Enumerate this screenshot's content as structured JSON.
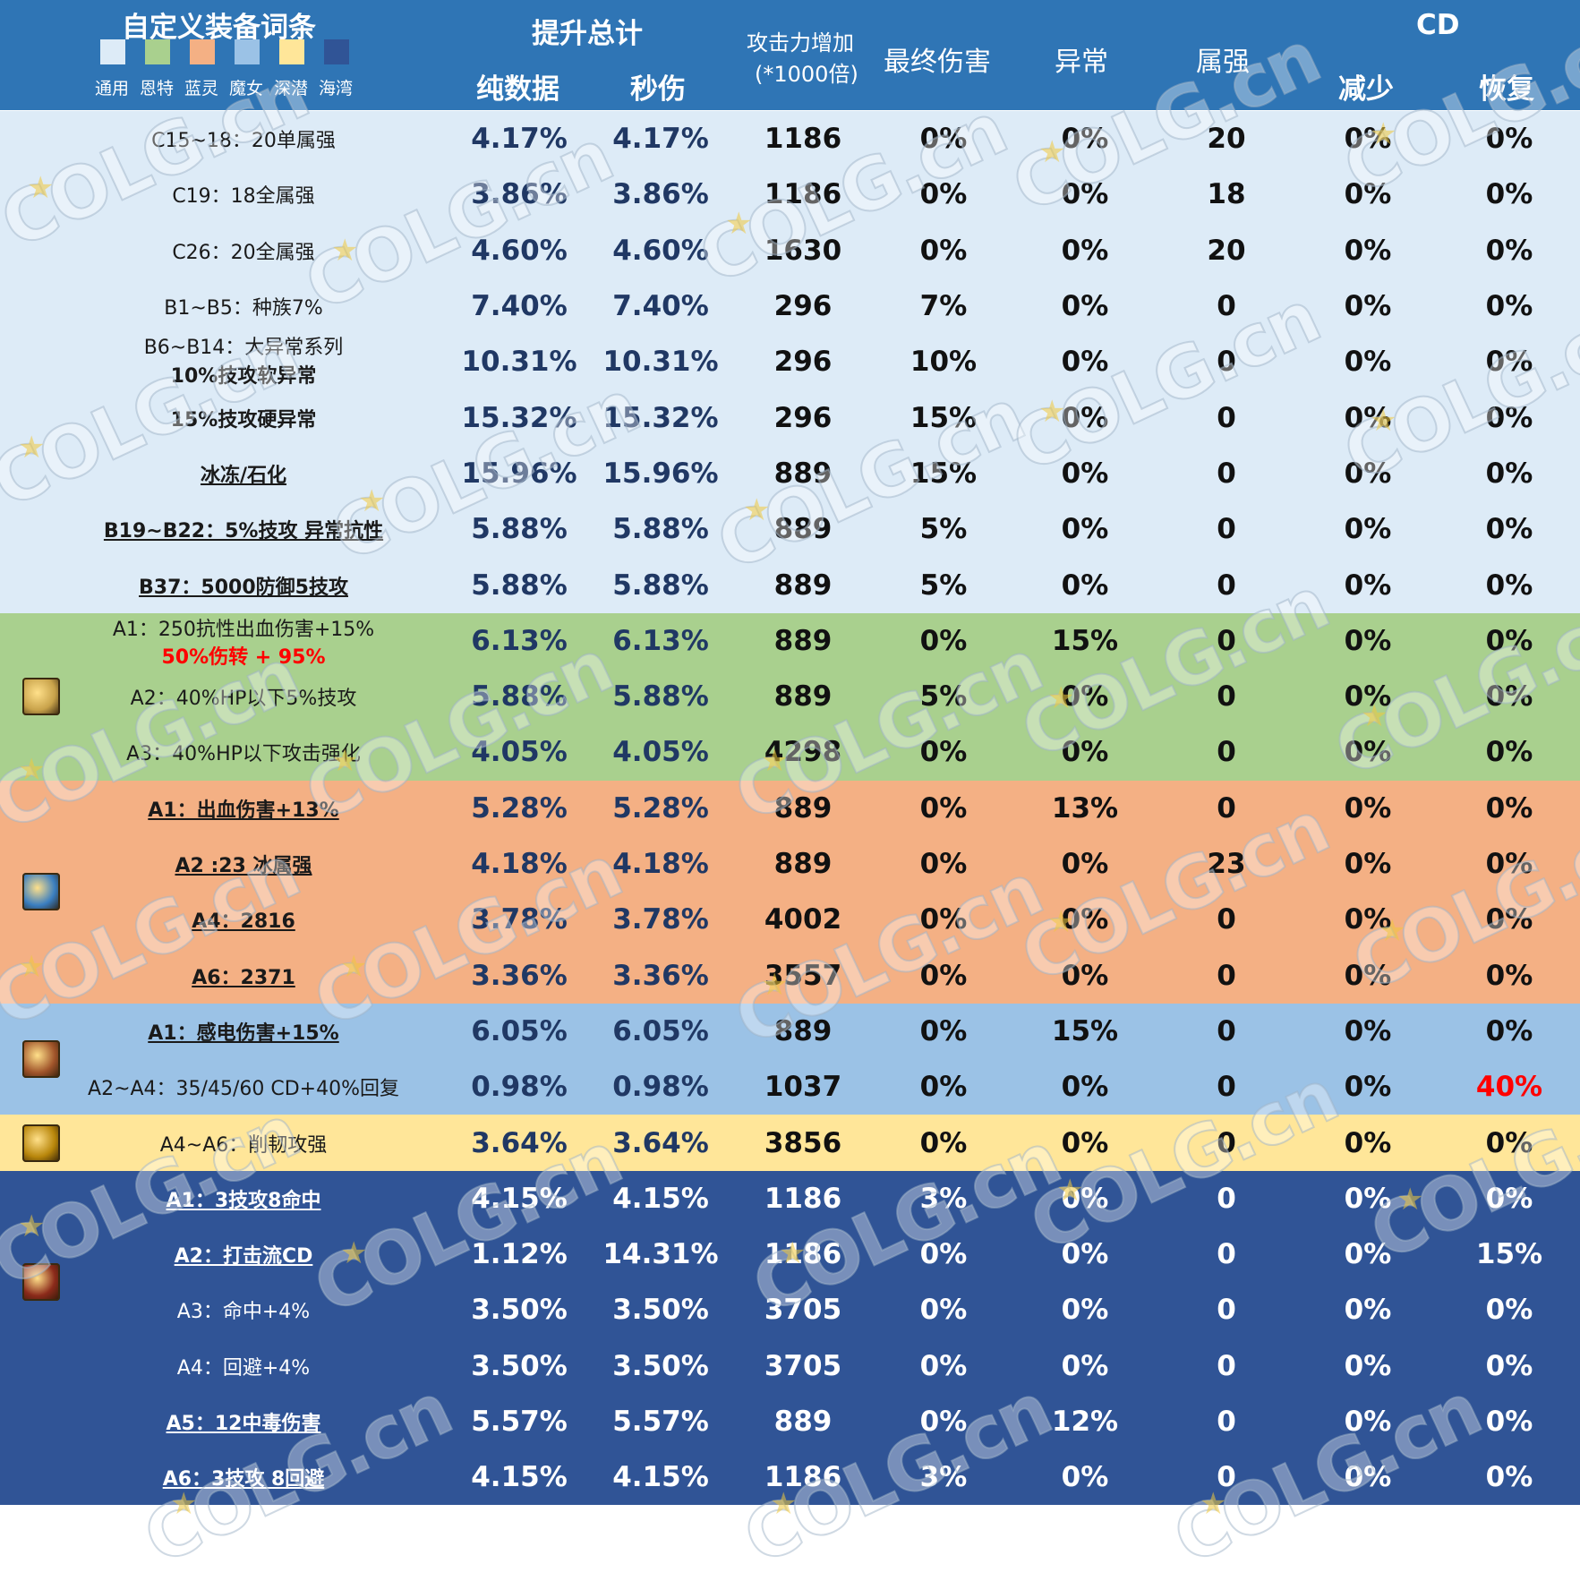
{
  "header": {
    "title": "自定义装备词条",
    "swatches": [
      {
        "label": "通用",
        "color": "#ddebf7"
      },
      {
        "label": "恩特",
        "color": "#a9d08e"
      },
      {
        "label": "蓝灵",
        "color": "#f4b084"
      },
      {
        "label": "魔女",
        "color": "#9bc2e6"
      },
      {
        "label": "深潜",
        "color": "#ffe699"
      },
      {
        "label": "海湾",
        "color": "#305496"
      }
    ],
    "total_label": "提升总计",
    "col_pure": "纯数据",
    "col_sec": "秒伤",
    "col_atk_line1": "攻击力增加",
    "col_atk_line2": "(*1000倍)",
    "col_final": "最终伤害",
    "col_abn": "异常",
    "col_elem": "属强",
    "cd_label": "CD",
    "col_cd_reduce": "减少",
    "col_cd_recover": "恢复"
  },
  "colors": {
    "header_bg": "#2f75b5",
    "general": "#ddebf7",
    "ent": "#a9d08e",
    "blue": "#f4b084",
    "witch": "#9bc2e6",
    "deep": "#ffe699",
    "bay": "#305496",
    "num_dark": "#203864",
    "red": "#ff0000"
  },
  "rows": [
    {
      "label": "C15~18：20单属强",
      "pure": "4.17%",
      "sec": "4.17%",
      "atk": "1186",
      "final": "0%",
      "abn": "0%",
      "elem": "20",
      "cdr": "0%",
      "cdrec": "0%"
    },
    {
      "label": "C19：18全属强",
      "pure": "3.86%",
      "sec": "3.86%",
      "atk": "1186",
      "final": "0%",
      "abn": "0%",
      "elem": "18",
      "cdr": "0%",
      "cdrec": "0%"
    },
    {
      "label": "C26：20全属强",
      "pure": "4.60%",
      "sec": "4.60%",
      "atk": "1630",
      "final": "0%",
      "abn": "0%",
      "elem": "20",
      "cdr": "0%",
      "cdrec": "0%"
    },
    {
      "label": "B1~B5：种族7%",
      "pure": "7.40%",
      "sec": "7.40%",
      "atk": "296",
      "final": "7%",
      "abn": "0%",
      "elem": "0",
      "cdr": "0%",
      "cdrec": "0%"
    },
    {
      "label": "B6~B14：大异常系列",
      "pure": "10.31%",
      "sec": "10.31%",
      "atk": "296",
      "final": "10%",
      "abn": "0%",
      "elem": "0",
      "cdr": "0%",
      "cdrec": "0%"
    },
    {
      "label": "15%技攻硬异常",
      "pure": "15.32%",
      "sec": "15.32%",
      "atk": "296",
      "final": "15%",
      "abn": "0%",
      "elem": "0",
      "cdr": "0%",
      "cdrec": "0%"
    },
    {
      "label": "冰冻/石化",
      "pure": "15.96%",
      "sec": "15.96%",
      "atk": "889",
      "final": "15%",
      "abn": "0%",
      "elem": "0",
      "cdr": "0%",
      "cdrec": "0%"
    },
    {
      "label": "B19~B22：5%技攻 异常抗性",
      "pure": "5.88%",
      "sec": "5.88%",
      "atk": "889",
      "final": "5%",
      "abn": "0%",
      "elem": "0",
      "cdr": "0%",
      "cdrec": "0%"
    },
    {
      "label": "B37：5000防御5技攻",
      "pure": "5.88%",
      "sec": "5.88%",
      "atk": "889",
      "final": "5%",
      "abn": "0%",
      "elem": "0",
      "cdr": "0%",
      "cdrec": "0%"
    },
    {
      "label": "A1：250抗性出血伤害+15%",
      "pure": "6.13%",
      "sec": "6.13%",
      "atk": "889",
      "final": "0%",
      "abn": "15%",
      "elem": "0",
      "cdr": "0%",
      "cdrec": "0%"
    },
    {
      "label": "A2：40%HP以下5%技攻",
      "pure": "5.88%",
      "sec": "5.88%",
      "atk": "889",
      "final": "5%",
      "abn": "0%",
      "elem": "0",
      "cdr": "0%",
      "cdrec": "0%"
    },
    {
      "label": "A3：40%HP以下攻击强化",
      "pure": "4.05%",
      "sec": "4.05%",
      "atk": "4298",
      "final": "0%",
      "abn": "0%",
      "elem": "0",
      "cdr": "0%",
      "cdrec": "0%"
    },
    {
      "label": "A1：出血伤害+13%",
      "pure": "5.28%",
      "sec": "5.28%",
      "atk": "889",
      "final": "0%",
      "abn": "13%",
      "elem": "0",
      "cdr": "0%",
      "cdrec": "0%"
    },
    {
      "label": "A2 :23 冰属强",
      "pure": "4.18%",
      "sec": "4.18%",
      "atk": "889",
      "final": "0%",
      "abn": "0%",
      "elem": "23",
      "cdr": "0%",
      "cdrec": "0%"
    },
    {
      "label": "A4：2816",
      "pure": "3.78%",
      "sec": "3.78%",
      "atk": "4002",
      "final": "0%",
      "abn": "0%",
      "elem": "0",
      "cdr": "0%",
      "cdrec": "0%"
    },
    {
      "label": "A6：2371",
      "pure": "3.36%",
      "sec": "3.36%",
      "atk": "3557",
      "final": "0%",
      "abn": "0%",
      "elem": "0",
      "cdr": "0%",
      "cdrec": "0%"
    },
    {
      "label": "A1：感电伤害+15%",
      "pure": "6.05%",
      "sec": "6.05%",
      "atk": "889",
      "final": "0%",
      "abn": "15%",
      "elem": "0",
      "cdr": "0%",
      "cdrec": "0%"
    },
    {
      "label": "A2~A4：35/45/60 CD+40%回复",
      "pure": "0.98%",
      "sec": "0.98%",
      "atk": "1037",
      "final": "0%",
      "abn": "0%",
      "elem": "0",
      "cdr": "0%",
      "cdrec": "40%"
    },
    {
      "label": "A4~A6：削韧攻强",
      "pure": "3.64%",
      "sec": "3.64%",
      "atk": "3856",
      "final": "0%",
      "abn": "0%",
      "elem": "0",
      "cdr": "0%",
      "cdrec": "0%"
    },
    {
      "label": "A1：3技攻8命中",
      "pure": "4.15%",
      "sec": "4.15%",
      "atk": "1186",
      "final": "3%",
      "abn": "0%",
      "elem": "0",
      "cdr": "0%",
      "cdrec": "0%"
    },
    {
      "label": "A2：打击流CD",
      "pure": "1.12%",
      "sec": "14.31%",
      "atk": "1186",
      "final": "0%",
      "abn": "0%",
      "elem": "0",
      "cdr": "0%",
      "cdrec": "15%"
    },
    {
      "label": "A3：命中+4%",
      "pure": "3.50%",
      "sec": "3.50%",
      "atk": "3705",
      "final": "0%",
      "abn": "0%",
      "elem": "0",
      "cdr": "0%",
      "cdrec": "0%"
    },
    {
      "label": "A4：回避+4%",
      "pure": "3.50%",
      "sec": "3.50%",
      "atk": "3705",
      "final": "0%",
      "abn": "0%",
      "elem": "0",
      "cdr": "0%",
      "cdrec": "0%"
    },
    {
      "label": "A5：12中毒伤害",
      "pure": "5.57%",
      "sec": "5.57%",
      "atk": "889",
      "final": "0%",
      "abn": "12%",
      "elem": "0",
      "cdr": "0%",
      "cdrec": "0%"
    },
    {
      "label": "A6：3技攻 8回避",
      "pure": "4.15%",
      "sec": "4.15%",
      "atk": "1186",
      "final": "3%",
      "abn": "0%",
      "elem": "0",
      "cdr": "0%",
      "cdrec": "0%"
    }
  ],
  "extra_labels": {
    "soft_abnormal": "10%技攻软异常",
    "ent_note": "50%伤转 + 95%"
  },
  "watermark": "COLG.cn"
}
